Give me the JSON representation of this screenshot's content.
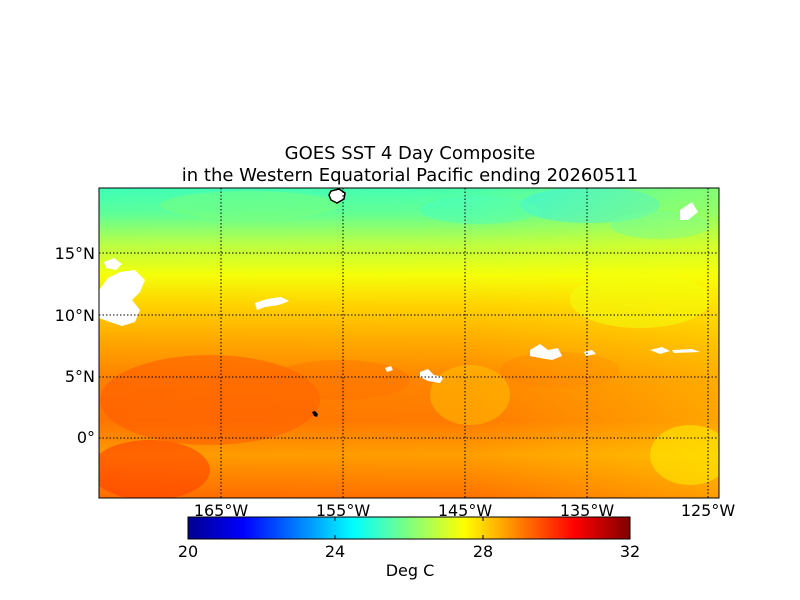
{
  "title_line1": "GOES SST 4 Day Composite",
  "title_line2": "in the Western Equatorial Pacific ending 20260511",
  "lat_labels": [
    "15°N",
    "10°N",
    "5°N",
    "0°"
  ],
  "lon_labels": [
    "165°W",
    "155°W",
    "145°W",
    "135°W",
    "125°W"
  ],
  "colorbar": {
    "ticks": [
      "20",
      "24",
      "28",
      "32"
    ],
    "label": "Deg C",
    "range": [
      20,
      32
    ],
    "colors": [
      "#00008f",
      "#0000ff",
      "#00ffff",
      "#ffff00",
      "#ff0000",
      "#800000"
    ]
  },
  "map_colors": {
    "cool": "#40ffb0",
    "mid": "#ffff00",
    "warm": "#ffa000",
    "hot": "#ff5a00",
    "land": "#ffffff",
    "cloud_mask": "#ffffff"
  }
}
